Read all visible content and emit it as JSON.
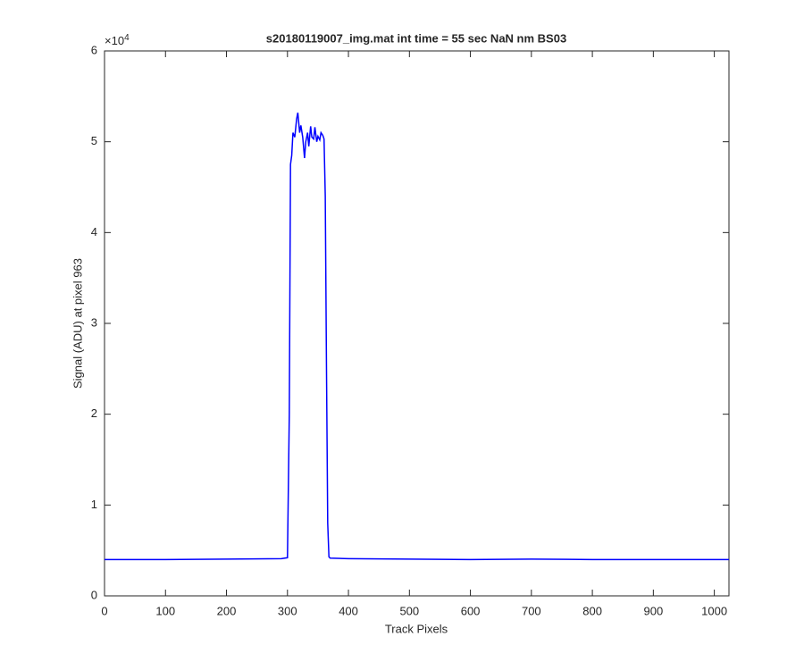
{
  "chart_data": {
    "type": "line",
    "title": "s20180119007_img.mat int time = 55 sec  NaN nm BS03",
    "x_label": "Track Pixels",
    "y_label": "Signal (ADU) at pixel 963",
    "y_multiplier": {
      "base": "×10",
      "exponent": "4"
    },
    "x": [
      0,
      100,
      200,
      290,
      300,
      303,
      305,
      307,
      309,
      312,
      315,
      317,
      320,
      322,
      325,
      328,
      330,
      333,
      335,
      338,
      340,
      343,
      345,
      348,
      350,
      353,
      355,
      358,
      360,
      362,
      364,
      366,
      368,
      370,
      400,
      500,
      600,
      700,
      800,
      900,
      1024
    ],
    "series": [
      {
        "name": "Signal",
        "color": "#0000ff",
        "values": [
          4000,
          4000,
          4050,
          4100,
          4200,
          20000,
          47500,
          48500,
          51000,
          50500,
          52500,
          53200,
          51000,
          51800,
          50500,
          48200,
          50000,
          51000,
          49500,
          51700,
          50500,
          50300,
          51600,
          50000,
          50600,
          50200,
          51000,
          50700,
          50300,
          44000,
          25000,
          8000,
          4300,
          4150,
          4100,
          4050,
          4000,
          4050,
          4000,
          4000,
          4000
        ]
      }
    ],
    "xlim": [
      0,
      1024
    ],
    "xticks": [
      0,
      100,
      200,
      300,
      400,
      500,
      600,
      700,
      800,
      900,
      1000
    ],
    "ylim": [
      0,
      60000
    ],
    "yticks": [
      {
        "value": 0,
        "label": "0"
      },
      {
        "value": 10000,
        "label": "1"
      },
      {
        "value": 20000,
        "label": "2"
      },
      {
        "value": 30000,
        "label": "3"
      },
      {
        "value": 40000,
        "label": "4"
      },
      {
        "value": 50000,
        "label": "5"
      },
      {
        "value": 60000,
        "label": "6"
      }
    ],
    "grid": false
  }
}
